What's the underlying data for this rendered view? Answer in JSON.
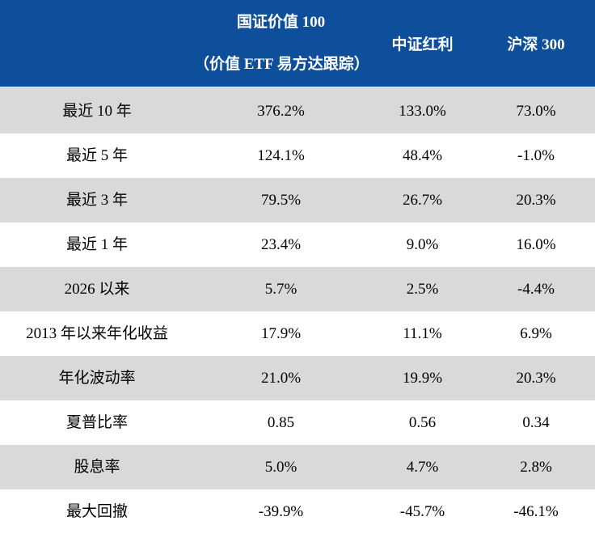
{
  "colors": {
    "header_bg": "#0E4F9C",
    "row_alt_bg": "#D9D9D9",
    "header_separator": "#CFDEEE",
    "header_text": "#FFFFFF",
    "body_text": "#000000"
  },
  "chart_data": {
    "type": "table",
    "title": "",
    "columns": [
      "",
      "国证价值 100（价值 ETF 易方达跟踪）",
      "中证红利",
      "沪深 300"
    ],
    "rows": [
      [
        "最近 10 年",
        "376.2%",
        "133.0%",
        "73.0%"
      ],
      [
        "最近 5 年",
        "124.1%",
        "48.4%",
        "-1.0%"
      ],
      [
        "最近 3 年",
        "79.5%",
        "26.7%",
        "20.3%"
      ],
      [
        "最近 1 年",
        "23.4%",
        "9.0%",
        "16.0%"
      ],
      [
        "2026 以来",
        "5.7%",
        "2.5%",
        "-4.4%"
      ],
      [
        "2013 年以来年化收益",
        "17.9%",
        "11.1%",
        "6.9%"
      ],
      [
        "年化波动率",
        "21.0%",
        "19.9%",
        "20.3%"
      ],
      [
        "夏普比率",
        "0.85",
        "0.56",
        "0.34"
      ],
      [
        "股息率",
        "5.0%",
        "4.7%",
        "2.8%"
      ],
      [
        "最大回撤",
        "-39.9%",
        "-45.7%",
        "-46.1%"
      ]
    ]
  },
  "table": {
    "header": {
      "col1_line1": "国证价值 100",
      "col1_line2": "（价值 ETF 易方达跟踪）",
      "col2": "中证红利",
      "col3": "沪深 300"
    },
    "rows": [
      {
        "label": "最近 10 年",
        "v1": "376.2%",
        "v2": "133.0%",
        "v3": "73.0%"
      },
      {
        "label": "最近 5 年",
        "v1": "124.1%",
        "v2": "48.4%",
        "v3": "-1.0%"
      },
      {
        "label": "最近 3 年",
        "v1": "79.5%",
        "v2": "26.7%",
        "v3": "20.3%"
      },
      {
        "label": "最近 1 年",
        "v1": "23.4%",
        "v2": "9.0%",
        "v3": "16.0%"
      },
      {
        "label": "2026 以来",
        "v1": "5.7%",
        "v2": "2.5%",
        "v3": "-4.4%"
      },
      {
        "label": "2013 年以来年化收益",
        "v1": "17.9%",
        "v2": "11.1%",
        "v3": "6.9%"
      },
      {
        "label": "年化波动率",
        "v1": "21.0%",
        "v2": "19.9%",
        "v3": "20.3%"
      },
      {
        "label": "夏普比率",
        "v1": "0.85",
        "v2": "0.56",
        "v3": "0.34"
      },
      {
        "label": "股息率",
        "v1": "5.0%",
        "v2": "4.7%",
        "v3": "2.8%"
      },
      {
        "label": "最大回撤",
        "v1": "-39.9%",
        "v2": "-45.7%",
        "v3": "-46.1%"
      }
    ]
  }
}
